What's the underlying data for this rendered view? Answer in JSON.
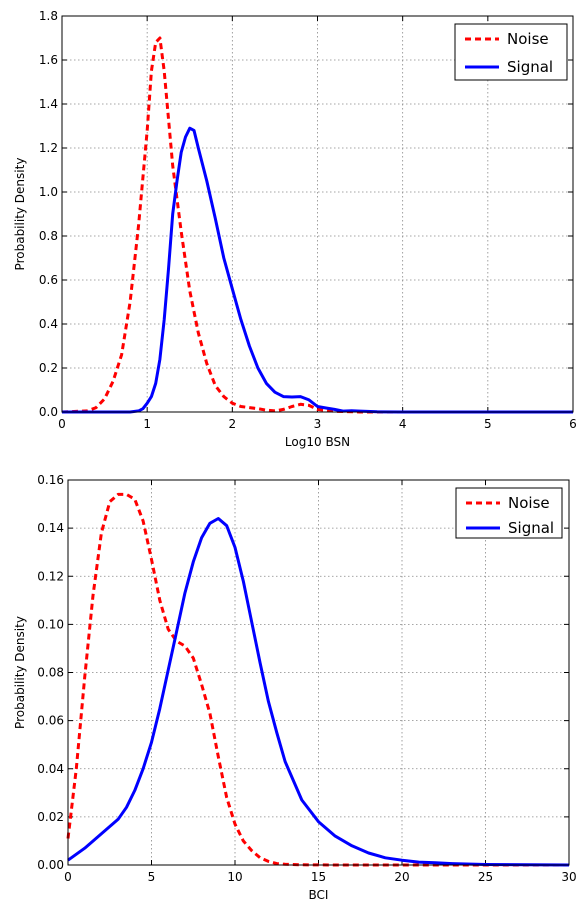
{
  "chart_data": [
    {
      "type": "line",
      "title": "",
      "xlabel": "Log10 BSN",
      "ylabel": "Probability Density",
      "xlim": [
        0,
        6
      ],
      "ylim": [
        0,
        1.8
      ],
      "xticks": [
        "0",
        "1",
        "2",
        "3",
        "4",
        "5",
        "6"
      ],
      "yticks": [
        "0.0",
        "0.2",
        "0.4",
        "0.6",
        "0.8",
        "1.0",
        "1.2",
        "1.4",
        "1.6",
        "1.8"
      ],
      "grid": true,
      "legend": "top-right",
      "series": [
        {
          "name": "Noise",
          "color": "#ff0000",
          "style": "dashed",
          "x": [
            0,
            0.3,
            0.4,
            0.5,
            0.6,
            0.7,
            0.8,
            0.9,
            1.0,
            1.05,
            1.1,
            1.15,
            1.2,
            1.3,
            1.4,
            1.5,
            1.6,
            1.7,
            1.8,
            1.9,
            2.0,
            2.1,
            2.2,
            2.3,
            2.4,
            2.5,
            2.6,
            2.7,
            2.8,
            2.9,
            3.0,
            3.2,
            3.5,
            6
          ],
          "y": [
            0,
            0.005,
            0.02,
            0.06,
            0.14,
            0.26,
            0.5,
            0.85,
            1.28,
            1.55,
            1.68,
            1.7,
            1.55,
            1.12,
            0.82,
            0.55,
            0.36,
            0.22,
            0.12,
            0.07,
            0.04,
            0.025,
            0.02,
            0.015,
            0.008,
            0.005,
            0.012,
            0.025,
            0.035,
            0.03,
            0.012,
            0.003,
            0,
            0
          ]
        },
        {
          "name": "Signal",
          "color": "#0000ff",
          "style": "solid",
          "x": [
            0,
            0.8,
            0.9,
            0.95,
            1.0,
            1.05,
            1.1,
            1.15,
            1.2,
            1.25,
            1.3,
            1.35,
            1.4,
            1.45,
            1.5,
            1.55,
            1.6,
            1.7,
            1.8,
            1.9,
            2.0,
            2.1,
            2.2,
            2.3,
            2.4,
            2.5,
            2.6,
            2.7,
            2.8,
            2.9,
            3.0,
            3.1,
            3.2,
            3.3,
            3.4,
            3.5,
            3.7,
            4.0,
            6
          ],
          "y": [
            0,
            0,
            0.005,
            0.015,
            0.04,
            0.07,
            0.13,
            0.24,
            0.42,
            0.65,
            0.9,
            1.05,
            1.18,
            1.25,
            1.29,
            1.28,
            1.2,
            1.05,
            0.88,
            0.7,
            0.56,
            0.42,
            0.3,
            0.2,
            0.13,
            0.09,
            0.07,
            0.068,
            0.07,
            0.055,
            0.025,
            0.018,
            0.012,
            0.004,
            0.006,
            0.004,
            0.001,
            0,
            0
          ]
        }
      ]
    },
    {
      "type": "line",
      "title": "",
      "xlabel": "BCI",
      "ylabel": "Probability Density",
      "xlim": [
        0,
        30
      ],
      "ylim": [
        0,
        0.16
      ],
      "xticks": [
        "0",
        "5",
        "10",
        "15",
        "20",
        "25",
        "30"
      ],
      "yticks": [
        "0.00",
        "0.02",
        "0.04",
        "0.06",
        "0.08",
        "0.10",
        "0.12",
        "0.14",
        "0.16"
      ],
      "grid": true,
      "legend": "top-right",
      "series": [
        {
          "name": "Noise",
          "color": "#ff0000",
          "style": "dashed",
          "x": [
            0,
            0.5,
            1.0,
            1.5,
            2.0,
            2.5,
            3.0,
            3.5,
            4.0,
            4.5,
            5.0,
            5.5,
            6.0,
            6.5,
            7.0,
            7.5,
            8.0,
            8.5,
            9.0,
            9.5,
            10.0,
            10.5,
            11.0,
            11.5,
            12.0,
            12.5,
            13.0,
            14.0,
            16.0,
            30
          ],
          "y": [
            0.011,
            0.04,
            0.078,
            0.112,
            0.138,
            0.151,
            0.154,
            0.154,
            0.152,
            0.143,
            0.127,
            0.11,
            0.098,
            0.093,
            0.091,
            0.086,
            0.075,
            0.063,
            0.045,
            0.028,
            0.017,
            0.01,
            0.006,
            0.003,
            0.0015,
            0.0006,
            0.0003,
            0.0001,
            0,
            0
          ]
        },
        {
          "name": "Signal",
          "color": "#0000ff",
          "style": "solid",
          "x": [
            0,
            1.0,
            2.0,
            3.0,
            3.5,
            4.0,
            4.5,
            5.0,
            5.5,
            6.0,
            6.5,
            7.0,
            7.5,
            8.0,
            8.5,
            9.0,
            9.5,
            10.0,
            10.5,
            11.0,
            11.5,
            12.0,
            12.5,
            13.0,
            14.0,
            15.0,
            16.0,
            17.0,
            18.0,
            19.0,
            20.0,
            21.0,
            22.0,
            23.0,
            25.0,
            30
          ],
          "y": [
            0.002,
            0.007,
            0.013,
            0.019,
            0.024,
            0.031,
            0.04,
            0.051,
            0.065,
            0.081,
            0.097,
            0.113,
            0.126,
            0.136,
            0.142,
            0.144,
            0.141,
            0.132,
            0.118,
            0.101,
            0.084,
            0.068,
            0.055,
            0.043,
            0.027,
            0.018,
            0.012,
            0.008,
            0.005,
            0.003,
            0.002,
            0.0012,
            0.0009,
            0.0006,
            0.0002,
            0
          ]
        }
      ]
    }
  ]
}
